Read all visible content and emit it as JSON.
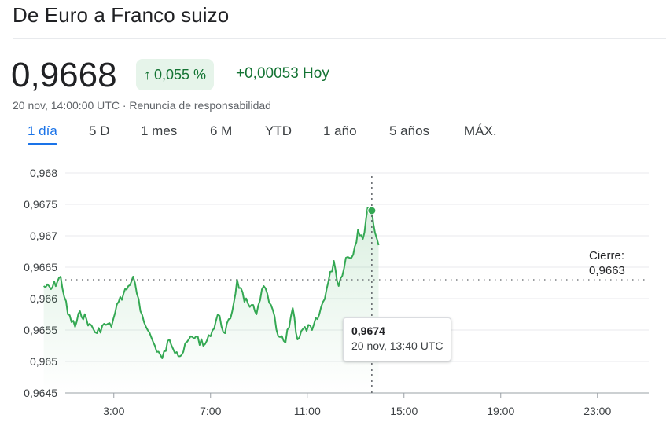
{
  "header": {
    "title": "De Euro a Franco suizo"
  },
  "quote": {
    "price": "0,9668",
    "change_percent": "0,055 %",
    "change_arrow": "↑",
    "change_absolute": "+0,00053 Hoy",
    "timestamp": "20 nov, 14:00:00 UTC · Renuncia de responsabilidad"
  },
  "tabs": [
    {
      "label": "1 día",
      "active": true
    },
    {
      "label": "5 D",
      "active": false
    },
    {
      "label": "1 mes",
      "active": false
    },
    {
      "label": "6 M",
      "active": false
    },
    {
      "label": "YTD",
      "active": false
    },
    {
      "label": "1 año",
      "active": false
    },
    {
      "label": "5 años",
      "active": false
    },
    {
      "label": "MÁX.",
      "active": false
    }
  ],
  "tooltip": {
    "value": "0,9674",
    "time": "20 nov, 13:40 UTC"
  },
  "close": {
    "label": "Cierre:",
    "value": "0,9663"
  },
  "colors": {
    "line": "#34a853",
    "positive_text": "#137333",
    "positive_bg": "#e6f4ea",
    "accent": "#1a73e8",
    "grid": "#e8eaed"
  },
  "chart_data": {
    "type": "line",
    "title": "",
    "xlabel": "",
    "ylabel": "",
    "x_unit": "hour (UTC)",
    "xlim": [
      0,
      24
    ],
    "ylim": [
      0.9645,
      0.968
    ],
    "y_ticks": [
      0.9645,
      0.965,
      0.9655,
      0.966,
      0.9665,
      0.967,
      0.9675,
      0.968
    ],
    "y_tick_labels": [
      "0,9645",
      "0,965",
      "0,9655",
      "0,966",
      "0,9665",
      "0,967",
      "0,9675",
      "0,968"
    ],
    "x_ticks": [
      3,
      7,
      11,
      15,
      19,
      23
    ],
    "x_tick_labels": [
      "3:00",
      "7:00",
      "11:00",
      "15:00",
      "19:00",
      "23:00"
    ],
    "grid": true,
    "previous_close": 0.9663,
    "hover_point": {
      "x": 13.67,
      "y": 0.9674
    },
    "series": [
      {
        "x": [
          0.1,
          0.4,
          0.8,
          1.1,
          1.4,
          1.6,
          2.0,
          2.3,
          2.6,
          2.9,
          3.2,
          3.6,
          3.8,
          4.1,
          4.4,
          4.7,
          5.0,
          5.3,
          5.6,
          5.8,
          6.1,
          6.4,
          6.7,
          7.0,
          7.3,
          7.6,
          7.9,
          8.1,
          8.4,
          8.7,
          8.9,
          9.2,
          9.5,
          9.8,
          10.1,
          10.4,
          10.6,
          10.9,
          11.2,
          11.5,
          11.8,
          12.1,
          12.3,
          12.6,
          12.9,
          13.1,
          13.3,
          13.5,
          13.67,
          13.8,
          13.95
        ],
        "y": [
          0.9662,
          0.96615,
          0.96635,
          0.96575,
          0.96555,
          0.9658,
          0.9656,
          0.96545,
          0.9656,
          0.96555,
          0.96595,
          0.9662,
          0.96635,
          0.9658,
          0.9655,
          0.96525,
          0.96505,
          0.96535,
          0.96515,
          0.9651,
          0.96535,
          0.9654,
          0.96525,
          0.9654,
          0.96575,
          0.96545,
          0.9658,
          0.9663,
          0.96595,
          0.9659,
          0.96575,
          0.9662,
          0.9659,
          0.9654,
          0.9653,
          0.96585,
          0.96535,
          0.96555,
          0.9655,
          0.96575,
          0.96615,
          0.9666,
          0.9662,
          0.96665,
          0.9667,
          0.9671,
          0.96695,
          0.96745,
          0.9674,
          0.96705,
          0.96685
        ]
      }
    ]
  }
}
